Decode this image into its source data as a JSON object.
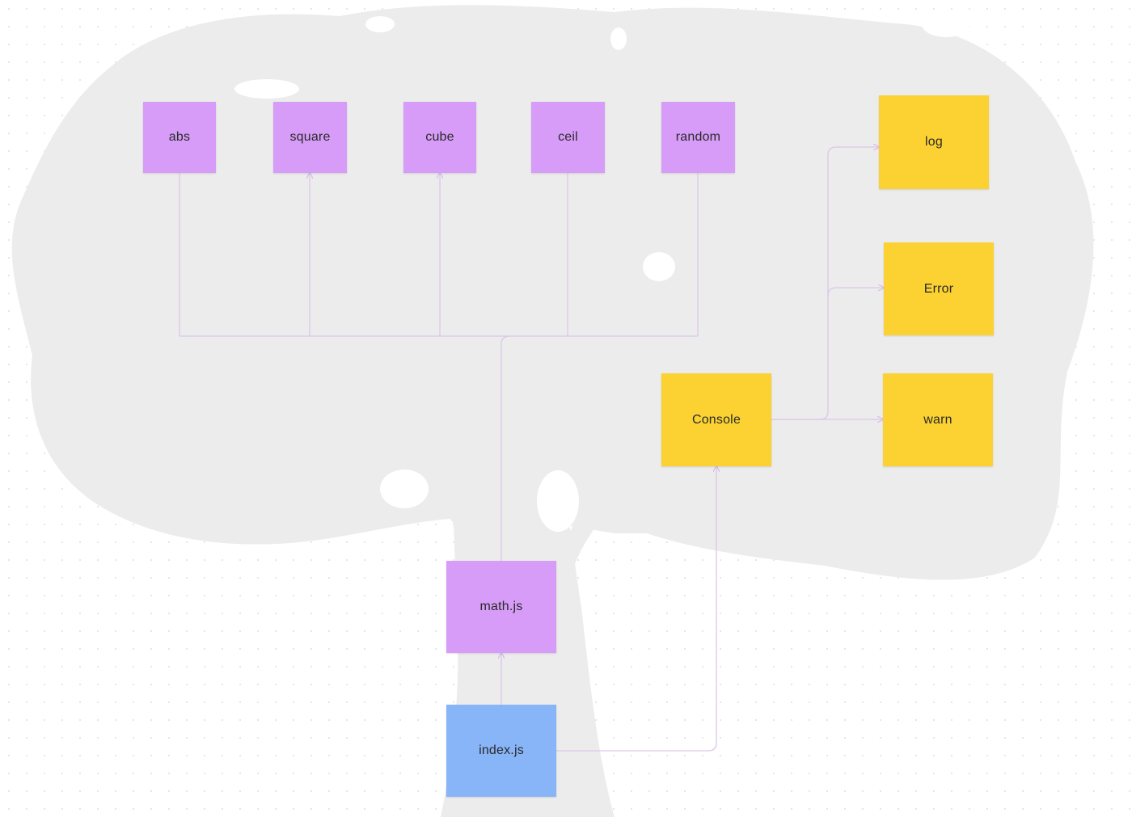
{
  "colors": {
    "purple": "#d69cf7",
    "yellow": "#fbd232",
    "blue": "#88b4f8",
    "connector": "#dcc6e8",
    "silhouette": "#ececec"
  },
  "notes": {
    "abs": {
      "label": "abs",
      "color": "purple"
    },
    "square": {
      "label": "square",
      "color": "purple"
    },
    "cube": {
      "label": "cube",
      "color": "purple"
    },
    "ceil": {
      "label": "ceil",
      "color": "purple"
    },
    "random": {
      "label": "random",
      "color": "purple"
    },
    "math": {
      "label": "math.js",
      "color": "purple"
    },
    "index": {
      "label": "index.js",
      "color": "blue"
    },
    "console": {
      "label": "Console",
      "color": "yellow"
    },
    "log": {
      "label": "log",
      "color": "yellow"
    },
    "error": {
      "label": "Error",
      "color": "yellow"
    },
    "warn": {
      "label": "warn",
      "color": "yellow"
    }
  }
}
